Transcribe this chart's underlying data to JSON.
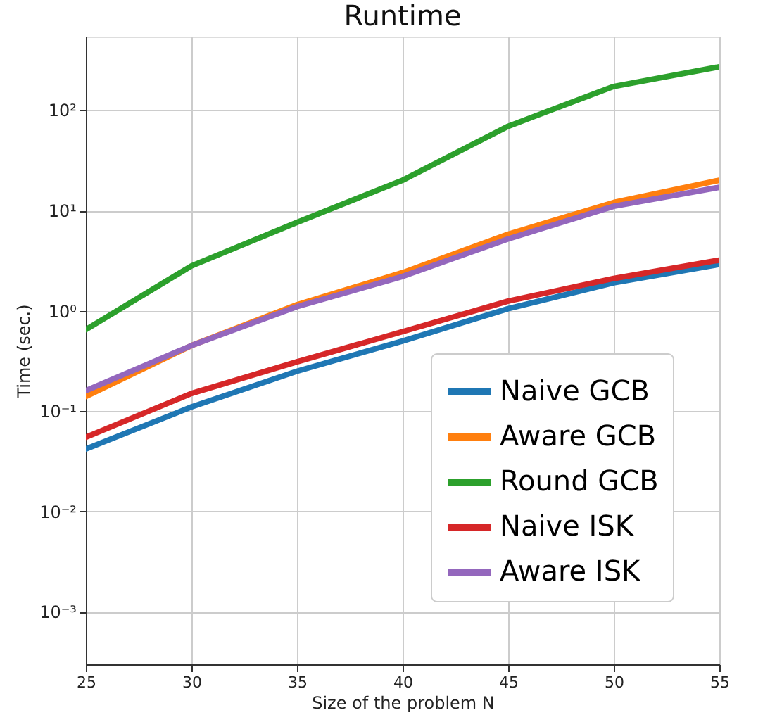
{
  "chart_data": {
    "type": "line",
    "title": "Runtime",
    "xlabel": "Size of the problem N",
    "ylabel": "Time (sec.)",
    "x": [
      25,
      30,
      35,
      40,
      45,
      50,
      55
    ],
    "series": [
      {
        "name": "Naive GCB",
        "color": "#1f77b4",
        "values": [
          0.042,
          0.11,
          0.25,
          0.5,
          1.05,
          1.9,
          2.9
        ]
      },
      {
        "name": "Aware GCB",
        "color": "#ff7f0e",
        "values": [
          0.14,
          0.45,
          1.15,
          2.4,
          5.8,
          12,
          20
        ]
      },
      {
        "name": "Round GCB",
        "color": "#2ca02c",
        "values": [
          0.65,
          2.8,
          7.6,
          20,
          69,
          172,
          270
        ]
      },
      {
        "name": "Naive ISK",
        "color": "#d62728",
        "values": [
          0.055,
          0.15,
          0.31,
          0.62,
          1.25,
          2.1,
          3.2
        ]
      },
      {
        "name": "Aware ISK",
        "color": "#9467bd",
        "values": [
          0.16,
          0.45,
          1.1,
          2.2,
          5.2,
          11,
          17
        ]
      }
    ],
    "xlim": [
      25,
      55
    ],
    "xticks": [
      25,
      30,
      35,
      40,
      45,
      50,
      55
    ],
    "ylim": [
      0.0003,
      540
    ],
    "yticks": [
      {
        "value": 0.001,
        "label": "10⁻³"
      },
      {
        "value": 0.01,
        "label": "10⁻²"
      },
      {
        "value": 0.1,
        "label": "10⁻¹"
      },
      {
        "value": 1,
        "label": "10⁰"
      },
      {
        "value": 10,
        "label": "10¹"
      },
      {
        "value": 100,
        "label": "10²"
      }
    ],
    "log": "y",
    "grid": true,
    "legend": "right",
    "marker": "none",
    "line_style": "solid"
  }
}
